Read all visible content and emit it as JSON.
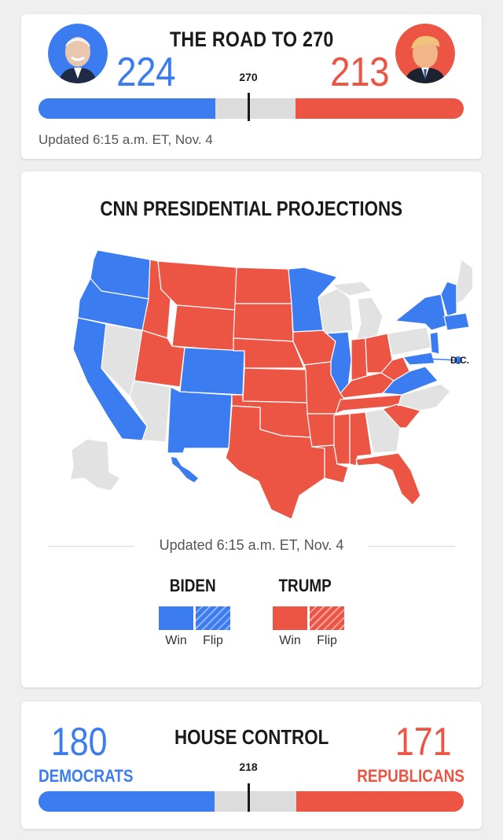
{
  "road": {
    "title": "THE ROAD TO 270",
    "biden_votes": "224",
    "trump_votes": "213",
    "threshold_label": "270",
    "biden_fraction": 0.416,
    "trump_fraction": 0.396,
    "updated": "Updated 6:15 a.m. ET, Nov. 4",
    "colors": {
      "dem": "#3b7cf0",
      "rep": "#ec5444",
      "undecided": "#dcdcdc"
    }
  },
  "projections": {
    "title": "CNN PRESIDENTIAL PROJECTIONS",
    "dc_label": "D.C.",
    "updated": "Updated 6:15 a.m. ET, Nov. 4",
    "legend": {
      "biden": {
        "name": "BIDEN",
        "win": "Win",
        "flip": "Flip"
      },
      "trump": {
        "name": "TRUMP",
        "win": "Win",
        "flip": "Flip"
      }
    },
    "map_colors": {
      "dem": "#3b7cf0",
      "rep": "#ec5444",
      "undecided": "#e2e2e2",
      "border": "#ffffff"
    }
  },
  "house": {
    "title": "HOUSE CONTROL",
    "dem_seats": "180",
    "dem_label": "DEMOCRATS",
    "rep_seats": "171",
    "rep_label": "REPUBLICANS",
    "threshold_label": "218",
    "dem_fraction": 0.414,
    "rep_fraction": 0.393
  }
}
